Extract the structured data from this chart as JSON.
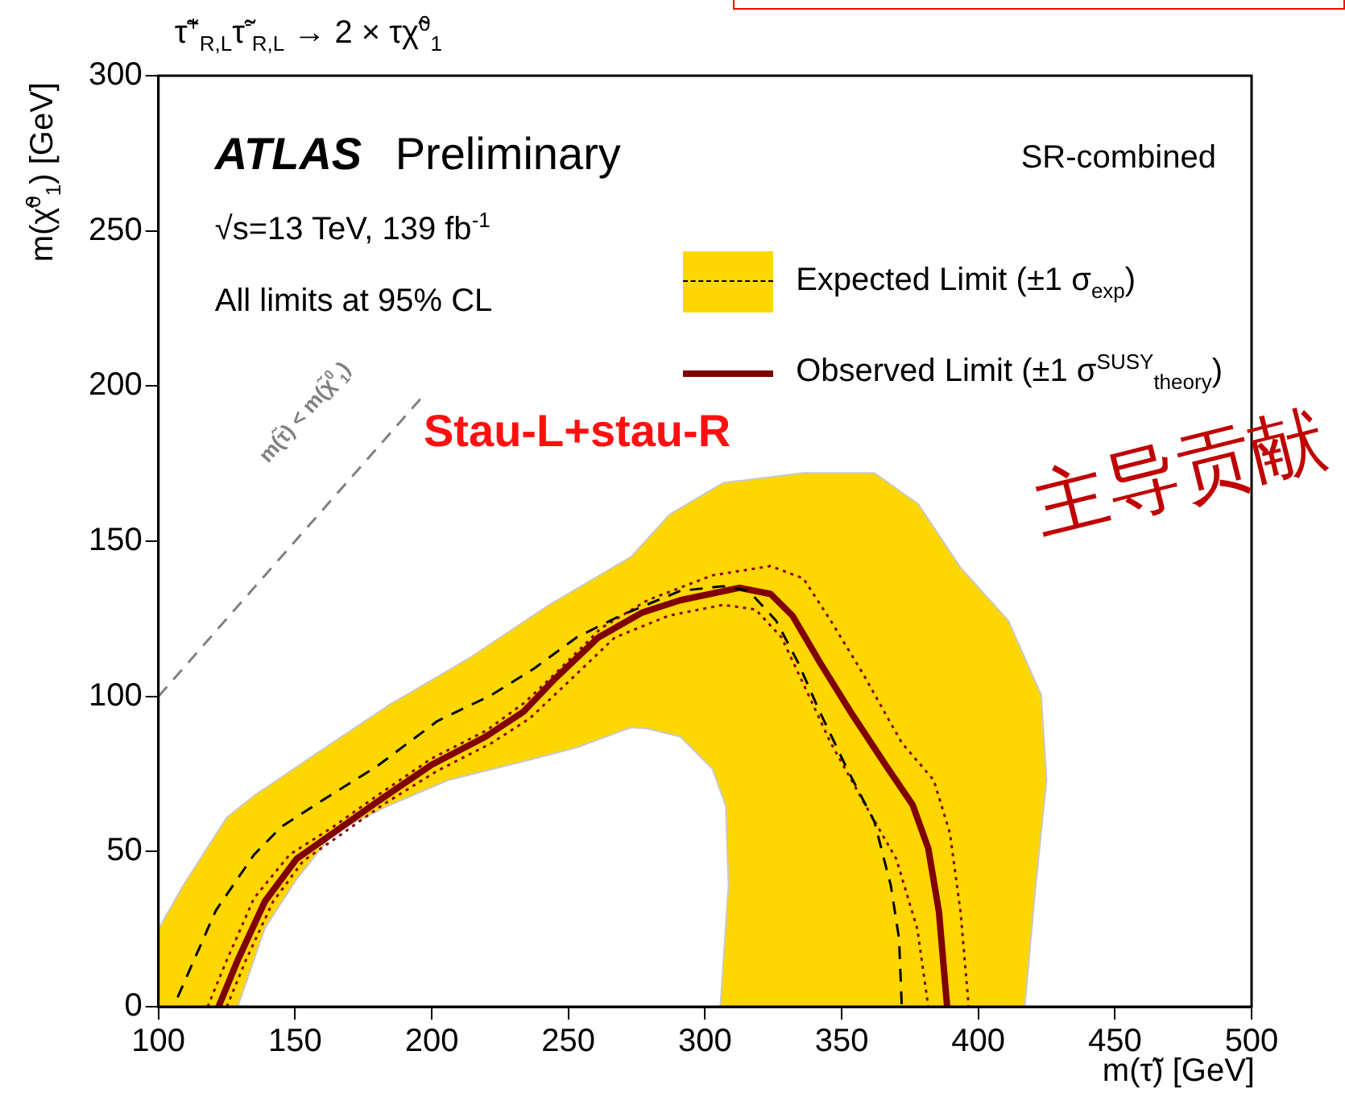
{
  "chart_data": {
    "type": "line",
    "title": "τ̃$^{+}$$_{R,L}$τ̃$^{-}$$_{R,L}$ → 2 × τχ̃$^{0}$$_{1}$",
    "xlabel": "m(τ̃) [GeV]",
    "ylabel": "m(χ̃$^{0}$$_{1}$) [GeV]",
    "xlim": [
      100,
      500
    ],
    "xticks": [
      100,
      150,
      200,
      250,
      300,
      350,
      400,
      450,
      500
    ],
    "ylim": [
      0,
      300
    ],
    "yticks": [
      0,
      50,
      100,
      150,
      200,
      250,
      300
    ],
    "grid": false,
    "legend": "top right",
    "marker": "none",
    "series": [
      {
        "type": "area",
        "color": "#ffd700",
        "x": [
          100,
          100,
          109,
          125,
          135,
          158.5,
          184,
          214,
          243,
          273,
          287,
          306.6,
          336,
          362,
          378,
          393.5,
          411,
          423,
          425,
          421,
          417,
          305.6,
          308.6,
          307.6,
          302.7,
          291,
          279,
          273,
          253,
          233.5,
          206,
          184,
          164,
          150.5,
          139,
          129,
          100
        ],
        "values": [
          0,
          25,
          39,
          61,
          68,
          82,
          97,
          112.5,
          129.5,
          145,
          158.6,
          168.8,
          172,
          172,
          162,
          141.5,
          124.4,
          100.5,
          73,
          39,
          0,
          0,
          39,
          64.7,
          76.6,
          87,
          89.6,
          90,
          83.5,
          79,
          73,
          64.7,
          56,
          41,
          25.4,
          0,
          0
        ]
      },
      {
        "name": "Expected Limit (±1 σ$_{exp}$)",
        "color": "#000000",
        "line_style": "dashed",
        "x": [
          107,
          113,
          121,
          135,
          145,
          160,
          180,
          202,
          222,
          237.5,
          253,
          269,
          291,
          306.6,
          316,
          326,
          334,
          342,
          352,
          362,
          368,
          371,
          372
        ],
        "values": [
          3,
          15,
          31,
          49,
          58,
          66.5,
          77.5,
          92,
          100.5,
          109,
          119,
          126,
          134,
          135.5,
          134,
          124.4,
          111,
          95,
          76.6,
          59.6,
          39,
          22,
          0
        ]
      },
      {
        "color": "#8b0000",
        "line_style": "dotted",
        "x": [
          118,
          125,
          135,
          148,
          164,
          180,
          200,
          220,
          234,
          246,
          262,
          279,
          302.7,
          324,
          336,
          346,
          358,
          372,
          383.7,
          389.6,
          393.5,
          396.5
        ],
        "values": [
          0,
          15,
          35,
          49,
          58,
          68,
          80,
          89,
          98,
          108,
          122,
          131,
          139,
          142,
          138,
          124.4,
          107,
          85,
          73,
          56,
          30.6,
          0
        ]
      },
      {
        "color": "#8b0000",
        "line_style": "dotted",
        "x": [
          125,
          132,
          142,
          153,
          166,
          182,
          202,
          222,
          236,
          248,
          267,
          286.7,
          306.6,
          318.5,
          328,
          336,
          346,
          358,
          370,
          377.7,
          381.7
        ],
        "values": [
          0,
          15,
          34,
          47,
          55,
          65,
          76,
          85,
          93,
          103,
          119,
          126,
          129.5,
          128,
          119,
          104,
          85,
          66,
          47.6,
          25,
          0
        ]
      },
      {
        "name": "Observed Limit (±1 σ$^{SUSY}$$_{theory}$)",
        "color": "#800000",
        "line_style": "solid",
        "x": [
          122,
          129,
          139,
          150.5,
          164,
          180,
          200,
          219.7,
          233.5,
          245,
          261,
          277,
          291,
          312.6,
          324,
          332,
          342,
          354,
          366,
          376,
          381.7,
          385.6,
          388.6
        ],
        "values": [
          0,
          15,
          34,
          47.6,
          56,
          66,
          78,
          87,
          95,
          105.6,
          119,
          127,
          131,
          135,
          133,
          126,
          111,
          94,
          78,
          65,
          51,
          30.6,
          0
        ]
      },
      {
        "color": "#808080",
        "line_style": "dashed",
        "x": [
          100,
          198
        ],
        "values": [
          100,
          198
        ]
      }
    ],
    "annotations": [
      "ATLAS",
      "Preliminary",
      "√s=13 TeV, 139 fb$^{-1}$",
      "All limits at 95% CL",
      "SR-combined",
      "Stau-L+stau-R",
      "主导贡献",
      "m(τ̃) < m(χ̃$^{0}$$_{1}$)"
    ]
  }
}
